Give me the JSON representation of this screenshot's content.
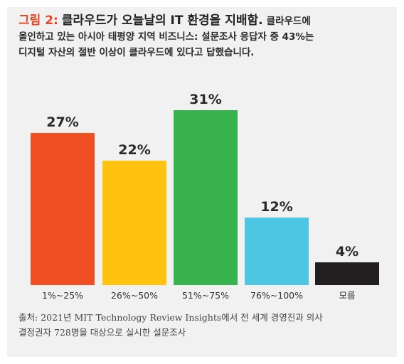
{
  "figure": {
    "label": "그림 2:",
    "heading": "클라우드가 오늘날의 IT 환경을 지배함.",
    "body_line1": "클라우드에",
    "body_line2": "올인하고 있는 아시아 태평양 지역 비즈니스: 설문조사 응답자 중 43%는",
    "body_line3": "디지털 자산의 절반 이상이 클라우드에 있다고 답했습니다.",
    "source_line1": "출처: 2021년 MIT Technology Review Insights에서 전 세계 경영진과 의사",
    "source_line2": "결정권자 728명을 대상으로 실시한 설문조사"
  },
  "chart_data": {
    "type": "bar",
    "title": "",
    "xlabel": "",
    "ylabel": "",
    "categories": [
      "1%~25%",
      "26%~50%",
      "51%~75%",
      "76%~100%",
      "모름"
    ],
    "values": [
      27,
      22,
      31,
      12,
      4
    ],
    "data_labels": [
      "27%",
      "22%",
      "31%",
      "12%",
      "4%"
    ],
    "colors": [
      "#f04e23",
      "#ffc20e",
      "#37b24d",
      "#4cc6e3",
      "#231f20"
    ],
    "ylim": [
      0,
      31
    ],
    "grid": false,
    "legend": "none"
  },
  "colors": {
    "accent": "#e8441f",
    "card_background": "#f1f1f1",
    "text": "#222222"
  }
}
